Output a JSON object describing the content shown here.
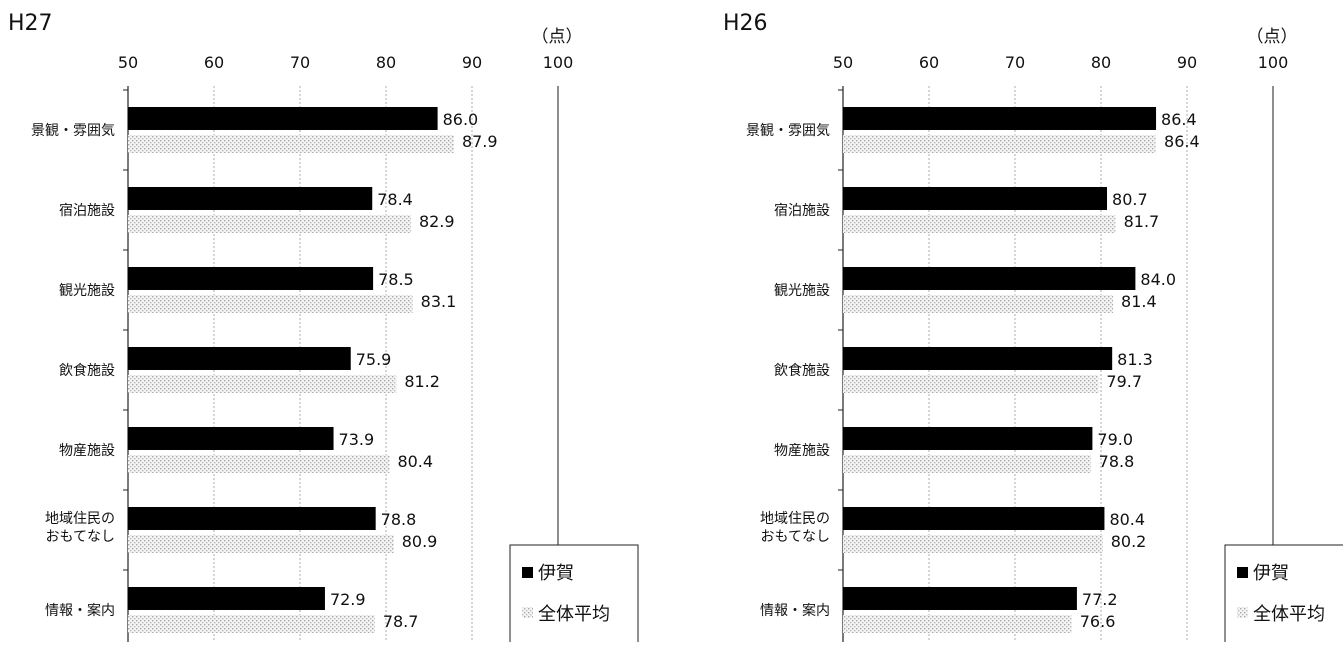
{
  "chart_data": [
    {
      "type": "bar",
      "title": "H27",
      "unit": "（点）",
      "xlim": [
        50,
        100
      ],
      "ticks": [
        50,
        60,
        70,
        80,
        90,
        100
      ],
      "categories": [
        "景観・雰囲気",
        "宿泊施設",
        "観光施設",
        "飲食施設",
        "物産施設",
        "地域住民の|おもてなし",
        "情報・案内"
      ],
      "series": [
        {
          "name": "伊賀",
          "color": "#000000",
          "values": [
            86.0,
            78.4,
            78.5,
            75.9,
            73.9,
            78.8,
            72.9
          ]
        },
        {
          "name": "全体平均",
          "color": "#d9d9d9",
          "values": [
            87.9,
            82.9,
            83.1,
            81.2,
            80.4,
            80.9,
            78.7
          ]
        }
      ],
      "legend_position": "bottom-right"
    },
    {
      "type": "bar",
      "title": "H26",
      "unit": "（点）",
      "xlim": [
        50,
        100
      ],
      "ticks": [
        50,
        60,
        70,
        80,
        90,
        100
      ],
      "categories": [
        "景観・雰囲気",
        "宿泊施設",
        "観光施設",
        "飲食施設",
        "物産施設",
        "地域住民の|おもてなし",
        "情報・案内"
      ],
      "series": [
        {
          "name": "伊賀",
          "color": "#000000",
          "values": [
            86.4,
            80.7,
            84.0,
            81.3,
            79.0,
            80.4,
            77.2
          ]
        },
        {
          "name": "全体平均",
          "color": "#d9d9d9",
          "values": [
            86.4,
            81.7,
            81.4,
            79.7,
            78.8,
            80.2,
            76.6
          ]
        }
      ],
      "legend_position": "bottom-right"
    }
  ]
}
